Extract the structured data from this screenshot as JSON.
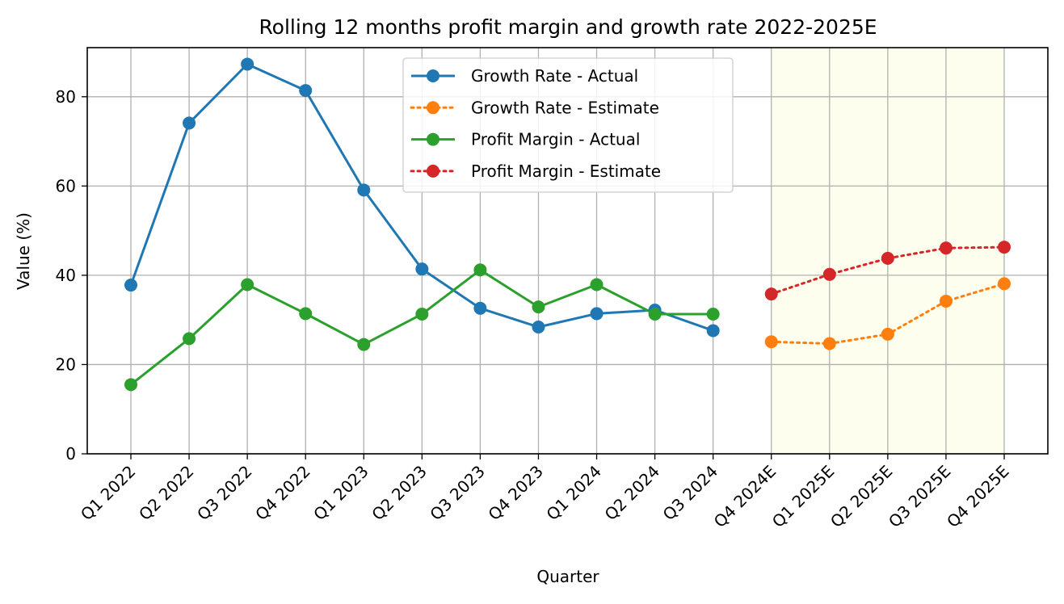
{
  "chart_data": {
    "type": "line",
    "title": "Rolling 12 months profit margin and growth rate 2022-2025E",
    "xlabel": "Quarter",
    "ylabel": "Value (%)",
    "ylim": [
      0,
      91
    ],
    "yticks": [
      0,
      20,
      40,
      60,
      80
    ],
    "grid": true,
    "legend_position": "top-center",
    "categories": [
      "Q1 2022",
      "Q2 2022",
      "Q3 2022",
      "Q4 2022",
      "Q1 2023",
      "Q2 2023",
      "Q3 2023",
      "Q4 2023",
      "Q1 2024",
      "Q2 2024",
      "Q3 2024",
      "Q4 2024E",
      "Q1 2025E",
      "Q2 2025E",
      "Q3 2025E",
      "Q4 2025E"
    ],
    "shaded_region": {
      "from": "Q4 2024E",
      "to": "Q4 2025E",
      "color": "#fefeee"
    },
    "series": [
      {
        "name": "Growth Rate - Actual",
        "color": "#1f77b4",
        "style": "solid",
        "x": [
          "Q1 2022",
          "Q2 2022",
          "Q3 2022",
          "Q4 2022",
          "Q1 2023",
          "Q2 2023",
          "Q3 2023",
          "Q4 2023",
          "Q1 2024",
          "Q2 2024",
          "Q3 2024"
        ],
        "values": [
          37.8,
          74.1,
          87.3,
          81.4,
          59.1,
          41.4,
          32.6,
          28.4,
          31.4,
          32.2,
          27.6
        ]
      },
      {
        "name": "Growth Rate - Estimate",
        "color": "#ff7f0e",
        "style": "dotted",
        "x": [
          "Q4 2024E",
          "Q1 2025E",
          "Q2 2025E",
          "Q3 2025E",
          "Q4 2025E"
        ],
        "values": [
          25.1,
          24.7,
          26.8,
          34.2,
          38.1
        ]
      },
      {
        "name": "Profit Margin - Actual",
        "color": "#2ca02c",
        "style": "solid",
        "x": [
          "Q1 2022",
          "Q2 2022",
          "Q3 2022",
          "Q4 2022",
          "Q1 2023",
          "Q2 2023",
          "Q3 2023",
          "Q4 2023",
          "Q1 2024",
          "Q2 2024",
          "Q3 2024"
        ],
        "values": [
          15.5,
          25.8,
          37.9,
          31.4,
          24.5,
          31.3,
          41.2,
          32.9,
          37.9,
          31.3,
          31.3
        ]
      },
      {
        "name": "Profit Margin - Estimate",
        "color": "#d62728",
        "style": "dotted",
        "x": [
          "Q4 2024E",
          "Q1 2025E",
          "Q2 2025E",
          "Q3 2025E",
          "Q4 2025E"
        ],
        "values": [
          35.8,
          40.2,
          43.8,
          46.1,
          46.3
        ]
      }
    ]
  }
}
